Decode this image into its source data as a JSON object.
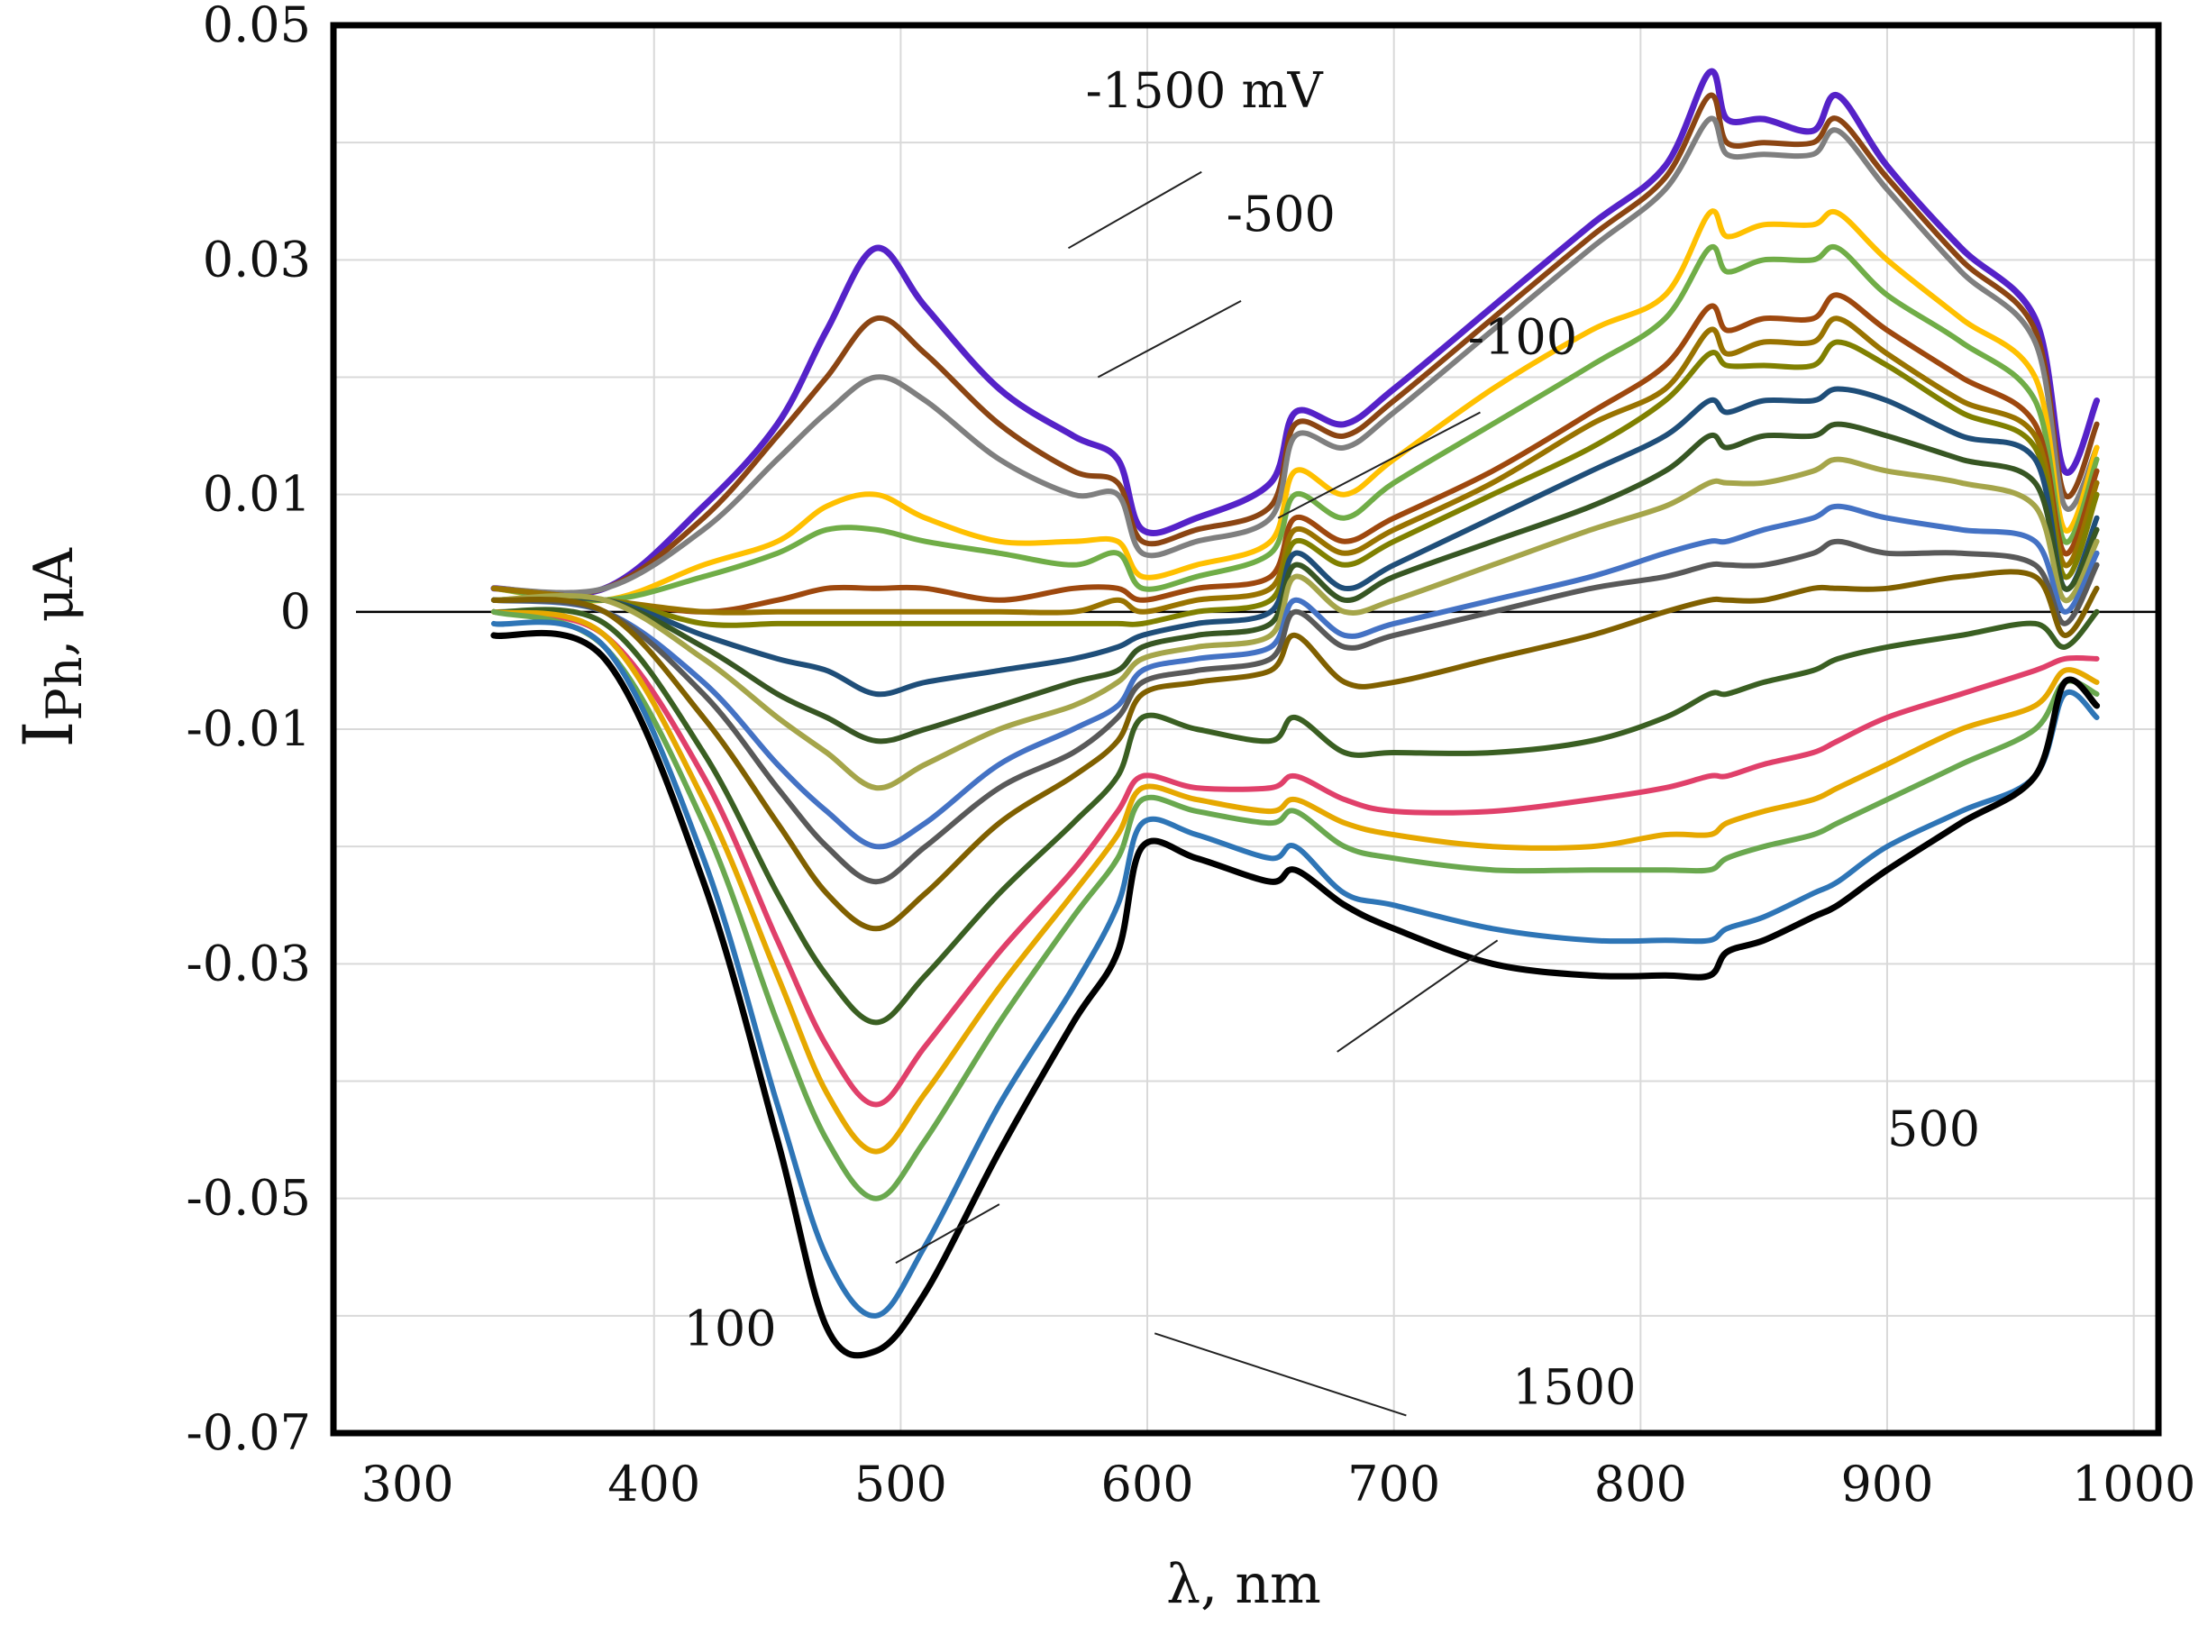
{
  "chart_data": {
    "type": "line",
    "title": "",
    "xlabel": "λ, nm",
    "ylabel_main": "I",
    "ylabel_sub": "Ph",
    "ylabel_unit": ", μA",
    "xlim": [
      270,
      1010
    ],
    "ylim": [
      -0.07,
      0.05
    ],
    "x_ticks": [
      {
        "v": 300,
        "label": "300"
      },
      {
        "v": 400,
        "label": "400"
      },
      {
        "v": 500,
        "label": "500"
      },
      {
        "v": 600,
        "label": "600"
      },
      {
        "v": 700,
        "label": "700"
      },
      {
        "v": 800,
        "label": "800"
      },
      {
        "v": 900,
        "label": "900"
      },
      {
        "v": 1000,
        "label": "1000"
      }
    ],
    "y_ticks": [
      {
        "v": 0.05,
        "label": "0.05"
      },
      {
        "v": 0.03,
        "label": "0.03"
      },
      {
        "v": 0.01,
        "label": "0.01"
      },
      {
        "v": 0,
        "label": "0"
      },
      {
        "v": -0.01,
        "label": "-0.01"
      },
      {
        "v": -0.03,
        "label": "-0.03"
      },
      {
        "v": -0.05,
        "label": "-0.05"
      },
      {
        "v": -0.07,
        "label": "-0.07"
      }
    ],
    "x_gridlines": [
      400,
      500,
      600,
      700,
      800,
      900,
      1000
    ],
    "y_gridlines": [
      0.05,
      0.04,
      0.03,
      0.02,
      0.01,
      -0.01,
      -0.02,
      -0.03,
      -0.04,
      -0.05,
      -0.06
    ],
    "grid": true,
    "x": [
      335,
      380,
      420,
      450,
      470,
      490,
      510,
      540,
      570,
      588,
      598,
      620,
      650,
      660,
      680,
      700,
      740,
      780,
      810,
      828,
      835,
      850,
      870,
      880,
      900,
      930,
      960,
      972,
      985
    ],
    "series": [
      {
        "name": "-1500 mV",
        "color": "#5522c8",
        "values": [
          0.002,
          0.002,
          0.009,
          0.016,
          0.024,
          0.031,
          0.026,
          0.019,
          0.015,
          0.013,
          0.007,
          0.008,
          0.011,
          0.017,
          0.016,
          0.019,
          0.026,
          0.033,
          0.038,
          0.046,
          0.042,
          0.042,
          0.041,
          0.044,
          0.038,
          0.031,
          0.025,
          0.012,
          0.018
        ]
      },
      {
        "name": "",
        "color": "#8b4513",
        "values": [
          0.002,
          0.002,
          0.008,
          0.015,
          0.02,
          0.025,
          0.022,
          0.016,
          0.012,
          0.011,
          0.006,
          0.007,
          0.009,
          0.016,
          0.015,
          0.018,
          0.025,
          0.032,
          0.037,
          0.044,
          0.04,
          0.04,
          0.04,
          0.042,
          0.037,
          0.03,
          0.024,
          0.01,
          0.016
        ]
      },
      {
        "name": "-500",
        "color": "#7f7f7f",
        "values": [
          0.002,
          0.002,
          0.007,
          0.013,
          0.017,
          0.02,
          0.018,
          0.013,
          0.01,
          0.01,
          0.005,
          0.006,
          0.008,
          0.015,
          0.014,
          0.017,
          0.024,
          0.031,
          0.036,
          0.042,
          0.039,
          0.039,
          0.039,
          0.041,
          0.036,
          0.029,
          0.023,
          0.009,
          0.014
        ]
      },
      {
        "name": "",
        "color": "#ffc000",
        "values": [
          0.002,
          0.001,
          0.004,
          0.006,
          0.009,
          0.01,
          0.008,
          0.006,
          0.006,
          0.006,
          0.003,
          0.004,
          0.006,
          0.012,
          0.01,
          0.013,
          0.019,
          0.024,
          0.027,
          0.034,
          0.032,
          0.033,
          0.033,
          0.034,
          0.03,
          0.025,
          0.02,
          0.007,
          0.014
        ]
      },
      {
        "name": "",
        "color": "#70ad47",
        "values": [
          0.002,
          0.001,
          0.003,
          0.005,
          0.007,
          0.007,
          0.006,
          0.005,
          0.004,
          0.005,
          0.002,
          0.003,
          0.005,
          0.01,
          0.008,
          0.011,
          0.016,
          0.021,
          0.025,
          0.031,
          0.029,
          0.03,
          0.03,
          0.031,
          0.027,
          0.023,
          0.018,
          0.006,
          0.013
        ]
      },
      {
        "name": "-100",
        "color": "#9e480e",
        "values": [
          0.002,
          0.001,
          0.0,
          0.001,
          0.002,
          0.002,
          0.002,
          0.001,
          0.002,
          0.002,
          0.001,
          0.002,
          0.003,
          0.008,
          0.006,
          0.008,
          0.012,
          0.017,
          0.021,
          0.026,
          0.024,
          0.025,
          0.025,
          0.027,
          0.024,
          0.02,
          0.016,
          0.005,
          0.012
        ]
      },
      {
        "name": "",
        "color": "#997300",
        "values": [
          0.002,
          0.001,
          0.0,
          0.0,
          0.0,
          0.0,
          0.0,
          0.0,
          0.0,
          0.001,
          0.0,
          0.001,
          0.002,
          0.007,
          0.005,
          0.007,
          0.011,
          0.016,
          0.019,
          0.024,
          0.022,
          0.023,
          0.023,
          0.025,
          0.022,
          0.018,
          0.015,
          0.004,
          0.011
        ]
      },
      {
        "name": "",
        "color": "#808000",
        "values": [
          0.001,
          0.001,
          -0.001,
          -0.001,
          -0.001,
          -0.001,
          -0.001,
          -0.001,
          -0.001,
          -0.001,
          -0.001,
          0.0,
          0.001,
          0.006,
          0.004,
          0.006,
          0.01,
          0.014,
          0.018,
          0.022,
          0.021,
          0.021,
          0.021,
          0.023,
          0.021,
          0.017,
          0.014,
          0.003,
          0.01
        ]
      },
      {
        "name": "",
        "color": "#1f4e79",
        "values": [
          0.001,
          0.001,
          -0.002,
          -0.004,
          -0.005,
          -0.007,
          -0.006,
          -0.005,
          -0.004,
          -0.003,
          -0.002,
          -0.001,
          0.0,
          0.005,
          0.002,
          0.004,
          0.008,
          0.012,
          0.015,
          0.018,
          0.017,
          0.018,
          0.018,
          0.019,
          0.018,
          0.015,
          0.013,
          0.002,
          0.008
        ]
      },
      {
        "name": "",
        "color": "#375623",
        "values": [
          0.001,
          0.001,
          -0.003,
          -0.007,
          -0.009,
          -0.011,
          -0.01,
          -0.008,
          -0.006,
          -0.005,
          -0.003,
          -0.002,
          -0.001,
          0.004,
          0.001,
          0.003,
          0.006,
          0.009,
          0.012,
          0.015,
          0.014,
          0.015,
          0.015,
          0.016,
          0.015,
          0.013,
          0.011,
          0.002,
          0.007
        ]
      },
      {
        "name": "",
        "color": "#a5a54a",
        "values": [
          0.001,
          0.001,
          -0.004,
          -0.009,
          -0.012,
          -0.015,
          -0.013,
          -0.01,
          -0.008,
          -0.006,
          -0.004,
          -0.003,
          -0.002,
          0.003,
          0.0,
          0.001,
          0.004,
          0.007,
          0.009,
          0.011,
          0.011,
          0.011,
          0.012,
          0.013,
          0.012,
          0.011,
          0.009,
          0.001,
          0.006
        ]
      },
      {
        "name": "",
        "color": "#4472c4",
        "values": [
          0.001,
          0.0,
          -0.006,
          -0.013,
          -0.017,
          -0.02,
          -0.018,
          -0.013,
          -0.01,
          -0.008,
          -0.005,
          -0.004,
          -0.003,
          0.001,
          -0.002,
          -0.001,
          0.001,
          0.003,
          0.005,
          0.006,
          0.006,
          0.007,
          0.008,
          0.009,
          0.008,
          0.007,
          0.006,
          0.0,
          0.005
        ]
      },
      {
        "name": "",
        "color": "#595959",
        "values": [
          0.001,
          0.0,
          -0.007,
          -0.015,
          -0.02,
          -0.023,
          -0.02,
          -0.015,
          -0.012,
          -0.009,
          -0.006,
          -0.005,
          -0.004,
          0.0,
          -0.003,
          -0.002,
          0.0,
          0.002,
          0.003,
          0.004,
          0.004,
          0.004,
          0.005,
          0.006,
          0.005,
          0.005,
          0.004,
          -0.001,
          0.004
        ]
      },
      {
        "name": "",
        "color": "#806000",
        "values": [
          0.001,
          0.0,
          -0.009,
          -0.018,
          -0.024,
          -0.027,
          -0.024,
          -0.018,
          -0.014,
          -0.011,
          -0.007,
          -0.006,
          -0.005,
          -0.002,
          -0.006,
          -0.006,
          -0.004,
          -0.002,
          0.0,
          0.001,
          0.001,
          0.001,
          0.002,
          0.002,
          0.002,
          0.003,
          0.003,
          -0.002,
          0.002
        ]
      },
      {
        "name": "",
        "color": "#3a5f22",
        "values": [
          0.0,
          -0.001,
          -0.012,
          -0.024,
          -0.031,
          -0.035,
          -0.031,
          -0.024,
          -0.018,
          -0.014,
          -0.009,
          -0.01,
          -0.011,
          -0.009,
          -0.012,
          -0.012,
          -0.012,
          -0.011,
          -0.009,
          -0.007,
          -0.007,
          -0.006,
          -0.005,
          -0.004,
          -0.003,
          -0.002,
          -0.001,
          -0.003,
          0.0
        ]
      },
      {
        "name": "",
        "color": "#e0406a",
        "values": [
          0.0,
          -0.002,
          -0.014,
          -0.028,
          -0.037,
          -0.042,
          -0.037,
          -0.029,
          -0.022,
          -0.017,
          -0.014,
          -0.015,
          -0.015,
          -0.014,
          -0.016,
          -0.017,
          -0.017,
          -0.016,
          -0.015,
          -0.014,
          -0.014,
          -0.013,
          -0.012,
          -0.011,
          -0.009,
          -0.007,
          -0.005,
          -0.004,
          -0.004
        ]
      },
      {
        "name": "",
        "color": "#e6a800",
        "values": [
          0.0,
          -0.002,
          -0.016,
          -0.031,
          -0.041,
          -0.046,
          -0.041,
          -0.032,
          -0.024,
          -0.019,
          -0.015,
          -0.016,
          -0.017,
          -0.016,
          -0.018,
          -0.019,
          -0.02,
          -0.02,
          -0.019,
          -0.019,
          -0.018,
          -0.017,
          -0.016,
          -0.015,
          -0.013,
          -0.01,
          -0.008,
          -0.005,
          -0.006
        ]
      },
      {
        "name": "",
        "color": "#6aa84f",
        "values": [
          0.0,
          -0.003,
          -0.018,
          -0.035,
          -0.045,
          -0.05,
          -0.045,
          -0.035,
          -0.026,
          -0.021,
          -0.016,
          -0.017,
          -0.018,
          -0.017,
          -0.02,
          -0.021,
          -0.022,
          -0.022,
          -0.022,
          -0.022,
          -0.021,
          -0.02,
          -0.019,
          -0.018,
          -0.016,
          -0.013,
          -0.01,
          -0.006,
          -0.007
        ]
      },
      {
        "name": "",
        "color": "#2e75b6",
        "values": [
          -0.001,
          -0.003,
          -0.021,
          -0.042,
          -0.055,
          -0.06,
          -0.054,
          -0.042,
          -0.032,
          -0.025,
          -0.018,
          -0.019,
          -0.021,
          -0.02,
          -0.024,
          -0.025,
          -0.027,
          -0.028,
          -0.028,
          -0.028,
          -0.027,
          -0.026,
          -0.024,
          -0.023,
          -0.02,
          -0.017,
          -0.014,
          -0.007,
          -0.009
        ]
      },
      {
        "name": "1500",
        "color": "#000000",
        "values": [
          -0.002,
          -0.004,
          -0.023,
          -0.045,
          -0.061,
          -0.063,
          -0.058,
          -0.046,
          -0.035,
          -0.029,
          -0.02,
          -0.021,
          -0.023,
          -0.022,
          -0.025,
          -0.027,
          -0.03,
          -0.031,
          -0.031,
          -0.031,
          -0.029,
          -0.028,
          -0.026,
          -0.025,
          -0.022,
          -0.018,
          -0.014,
          -0.006,
          -0.008
        ]
      }
    ],
    "annotations": [
      {
        "text": "-1500 mV",
        "at": [
          575,
          0.043
        ],
        "x2": 568,
        "y2": 0.031,
        "x1": 622,
        "y1": 0.0375
      },
      {
        "text": "-500",
        "at": [
          632,
          0.0325
        ],
        "x2": 580,
        "y2": 0.02,
        "x1": 638,
        "y1": 0.0265
      },
      {
        "text": "-100",
        "at": [
          730,
          0.022
        ],
        "x2": 653,
        "y2": 0.008,
        "x1": 735,
        "y1": 0.017
      },
      {
        "text": "500",
        "at": [
          900,
          -0.0455
        ],
        "x2": 742,
        "y2": -0.028,
        "x1": 677,
        "y1": -0.0375
      },
      {
        "text": "100",
        "at": [
          412,
          -0.0625
        ],
        "x2": 540,
        "y2": -0.0505,
        "x1": 498,
        "y1": -0.0555
      },
      {
        "text": "1500",
        "at": [
          748,
          -0.0675
        ],
        "x2": 603,
        "y2": -0.0615,
        "x1": 705,
        "y1": -0.0685
      }
    ]
  }
}
